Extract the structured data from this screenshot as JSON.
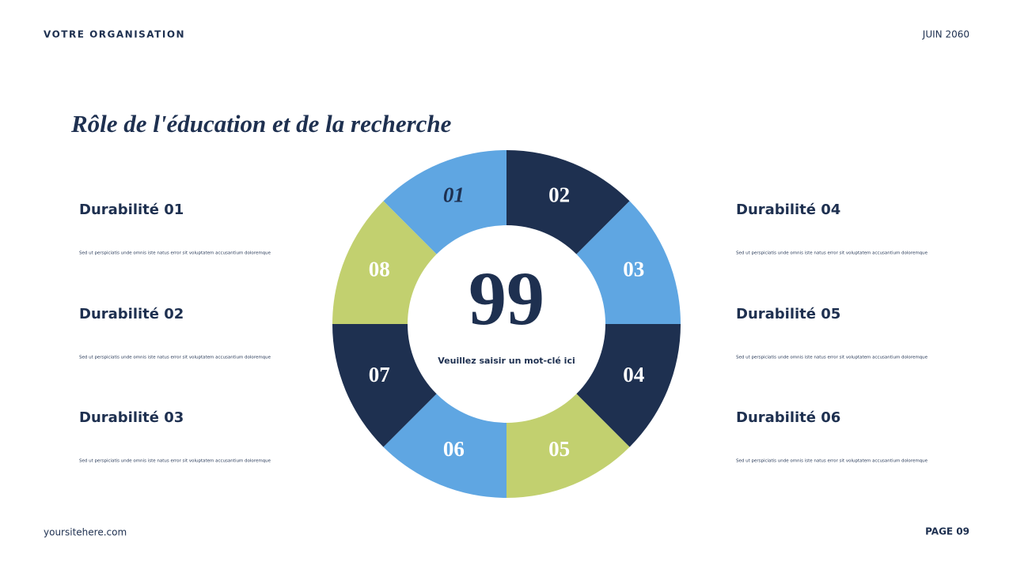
{
  "header": {
    "organisation": "VOTRE ORGANISATION",
    "date": "JUIN 2060"
  },
  "title": "Rôle de l'éducation et de la recherche",
  "center": {
    "number": "99",
    "caption": "Veuillez saisir un mot-clé ici"
  },
  "segments": [
    "01",
    "02",
    "03",
    "04",
    "05",
    "06",
    "07",
    "08"
  ],
  "items_left": [
    {
      "title": "Durabilité 01",
      "text": "Sed ut perspiciatis unde omnis iste natus error sit voluptatem accusantium doloremque"
    },
    {
      "title": "Durabilité 02",
      "text": "Sed ut perspiciatis unde omnis iste natus error sit voluptatem accusantium doloremque"
    },
    {
      "title": "Durabilité 03",
      "text": "Sed ut perspiciatis unde omnis iste natus error sit voluptatem accusantium doloremque"
    }
  ],
  "items_right": [
    {
      "title": "Durabilité 04",
      "text": "Sed ut perspiciatis unde omnis iste natus error sit voluptatem accusantium doloremque"
    },
    {
      "title": "Durabilité 05",
      "text": "Sed ut perspiciatis unde omnis iste natus error sit voluptatem accusantium doloremque"
    },
    {
      "title": "Durabilité 06",
      "text": "Sed ut perspiciatis unde omnis iste natus error sit voluptatem accusantium doloremque"
    }
  ],
  "footer": {
    "website": "yoursitehere.com",
    "page": "PAGE 09"
  }
}
